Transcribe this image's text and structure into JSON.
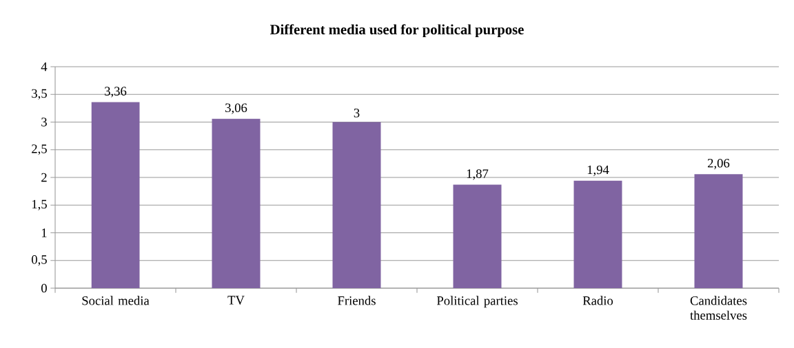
{
  "chart_data": {
    "type": "bar",
    "title": "Different media used for political purpose",
    "categories": [
      "Social media",
      "TV",
      "Friends",
      "Political parties",
      "Radio",
      "Candidates themselves"
    ],
    "values": [
      3.36,
      3.06,
      3,
      1.87,
      1.94,
      2.06
    ],
    "value_labels": [
      "3,36",
      "3,06",
      "3",
      "1,87",
      "1,94",
      "2,06"
    ],
    "color": "#8064a2",
    "ylim": [
      0,
      4
    ],
    "yticks": [
      0,
      {
        "value": 0.5,
        "label": "0,5"
      },
      1,
      {
        "value": 1.5,
        "label": "1,5"
      },
      2,
      {
        "value": 2.5,
        "label": "2,5"
      },
      3,
      {
        "value": 3.5,
        "label": "3,5"
      },
      4
    ],
    "grid": "y"
  }
}
